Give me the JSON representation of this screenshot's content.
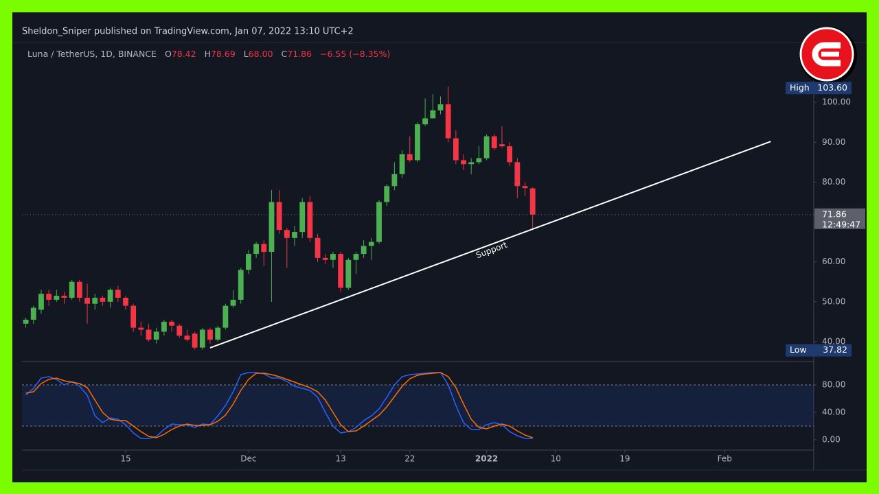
{
  "header": "Sheldon_Sniper published on TradingView.com, Jan 07, 2022 13:10 UTC+2",
  "legend": {
    "symbol": "Luna / TetherUS, 1D, BINANCE",
    "o_label": "O",
    "o": "78.42",
    "h_label": "H",
    "h": "78.69",
    "l_label": "L",
    "l": "68.00",
    "c_label": "C",
    "c": "71.86",
    "change": "−6.55 (−8.35%)"
  },
  "chart_data": [
    {
      "type": "candlestick",
      "up_color": "#4caf50",
      "down_color": "#f23645",
      "xlim": [
        -0.5,
        102.6
      ],
      "xticks": [
        {
          "value": 13,
          "label": "15"
        },
        {
          "value": 29,
          "label": "Dec"
        },
        {
          "value": 41,
          "label": "13"
        },
        {
          "value": 50,
          "label": "22"
        },
        {
          "value": 60,
          "label": "2022"
        },
        {
          "value": 69,
          "label": "10"
        },
        {
          "value": 78,
          "label": "19"
        },
        {
          "value": 91,
          "label": "Feb"
        }
      ],
      "ylim": [
        35,
        115
      ],
      "yticks": [
        {
          "value": 40,
          "label": "40.00"
        },
        {
          "value": 50,
          "label": "50.00"
        },
        {
          "value": 60,
          "label": "60.00"
        },
        {
          "value": 80,
          "label": "80.00"
        },
        {
          "value": 90,
          "label": "90.00"
        },
        {
          "value": 100,
          "label": "100.00"
        }
      ],
      "open": [
        44.5,
        45.5,
        48,
        52,
        50.5,
        51.5,
        51,
        55,
        51,
        49.5,
        51,
        50,
        53,
        51,
        49,
        43.5,
        43,
        40.5,
        42.5,
        45,
        44,
        41.5,
        42,
        38.5,
        43,
        40.5,
        43.5,
        49,
        50.5,
        58,
        62,
        64.5,
        62.5,
        75,
        68,
        66,
        67.5,
        75,
        66,
        61,
        60.5,
        62,
        53.5,
        60.5,
        62,
        64,
        65,
        75,
        79,
        82,
        87,
        85.5,
        94.5,
        96,
        98,
        99.5,
        91,
        85.5,
        84.5,
        85,
        86,
        91.5,
        89.5,
        89,
        85,
        79,
        78.42
      ],
      "high": [
        46,
        49,
        53,
        53,
        53,
        52.5,
        55.5,
        55.5,
        54.5,
        52,
        51.5,
        53.5,
        54,
        51.5,
        49.5,
        45,
        44.5,
        43.5,
        45.5,
        45.5,
        44.5,
        43,
        42.5,
        43.5,
        43.5,
        44,
        49.5,
        53,
        58.5,
        63,
        65,
        65.5,
        78,
        78,
        68.5,
        69,
        76,
        76.5,
        67,
        62,
        62.5,
        62.5,
        61,
        62.5,
        65.5,
        66,
        75.5,
        79.5,
        85,
        88,
        91.5,
        95,
        101,
        102,
        101.5,
        104,
        93,
        87,
        86,
        89,
        92,
        92,
        94,
        90,
        86,
        80,
        78.69
      ],
      "low": [
        43.5,
        44.5,
        47,
        49,
        50,
        49.5,
        50.5,
        50,
        44.5,
        48,
        49,
        48.5,
        50,
        48,
        42.5,
        41.5,
        40,
        39.5,
        41.5,
        42.5,
        41,
        40,
        38,
        38,
        39.5,
        40,
        43,
        48.5,
        49.5,
        57,
        61,
        59,
        50,
        67,
        58.5,
        64,
        66,
        65,
        60,
        59.5,
        58.5,
        52.5,
        53,
        57,
        61,
        60.5,
        64.5,
        74,
        78,
        81,
        85,
        85,
        94,
        96,
        97,
        90,
        84.5,
        83,
        82,
        84.5,
        85.5,
        88,
        88.5,
        84,
        76,
        76.5,
        68
      ],
      "close": [
        45.5,
        48.5,
        52,
        50.5,
        51.5,
        51,
        55,
        51,
        49.5,
        51,
        50,
        53,
        51,
        49,
        43.5,
        43,
        40.5,
        42.5,
        45,
        44,
        41.5,
        40.5,
        38.5,
        43,
        40.5,
        43.5,
        49,
        50.5,
        58,
        62,
        64.5,
        62.5,
        75,
        68,
        66,
        67.5,
        75,
        66,
        61,
        60.5,
        62,
        53.5,
        60.5,
        62,
        64,
        65,
        75,
        79,
        82,
        87,
        85.5,
        94.5,
        96,
        98,
        99.5,
        91,
        85.5,
        84.5,
        85,
        86,
        91.5,
        88.5,
        89,
        85,
        79,
        78.5,
        71.86
      ],
      "high_label": "High",
      "high_value": 103.6,
      "high_value_label": "103.60",
      "low_label": "Low",
      "low_value": 37.82,
      "low_value_label": "37.82",
      "last_price": 71.86,
      "last_price_label": "71.86",
      "countdown": "12:49:47",
      "trendline": {
        "x": [
          24,
          97
        ],
        "y": [
          38.45,
          90.2
        ],
        "label": "Support"
      }
    },
    {
      "type": "line",
      "xlim": [
        -0.5,
        102.6
      ],
      "ylim": [
        -15,
        114
      ],
      "yticks": [
        {
          "value": 0,
          "label": "0.00"
        },
        {
          "value": 40,
          "label": "40.00"
        },
        {
          "value": 80,
          "label": "80.00"
        }
      ],
      "bands": [
        20,
        80
      ],
      "series": [
        {
          "color": "#2962ff",
          "values": [
            65,
            75,
            90,
            92,
            88,
            80,
            85,
            78,
            65,
            35,
            25,
            32,
            30,
            22,
            10,
            2,
            2,
            5,
            15,
            23,
            22,
            22,
            18,
            23,
            22,
            35,
            50,
            70,
            95,
            98,
            98,
            96,
            90,
            90,
            85,
            78,
            75,
            72,
            62,
            40,
            20,
            10,
            12,
            18,
            28,
            35,
            45,
            62,
            80,
            92,
            95,
            96,
            97,
            98,
            98,
            80,
            50,
            25,
            15,
            15,
            22,
            25,
            22,
            12,
            6,
            2,
            2
          ]
        },
        {
          "color": "#ff6d00",
          "values": [
            68,
            70,
            82,
            88,
            90,
            86,
            84,
            82,
            76,
            58,
            40,
            30,
            28,
            28,
            20,
            12,
            5,
            3,
            8,
            15,
            20,
            23,
            21,
            21,
            22,
            27,
            36,
            52,
            72,
            88,
            97,
            97,
            95,
            92,
            88,
            84,
            80,
            76,
            70,
            58,
            40,
            22,
            12,
            13,
            20,
            28,
            36,
            48,
            63,
            78,
            89,
            94,
            96,
            97,
            98,
            92,
            76,
            52,
            30,
            18,
            16,
            20,
            23,
            20,
            13,
            7,
            3
          ]
        }
      ]
    }
  ]
}
